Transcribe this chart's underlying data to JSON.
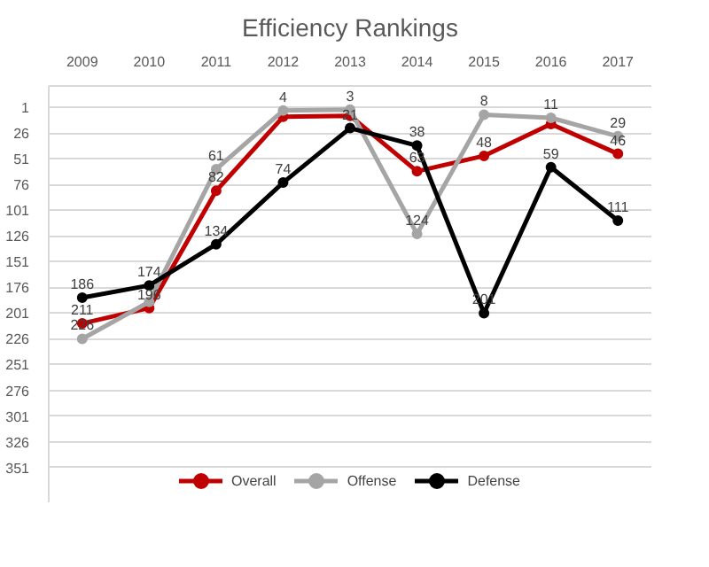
{
  "chart_data": {
    "type": "line",
    "title": "Efficiency Rankings",
    "categories": [
      "2009",
      "2010",
      "2011",
      "2012",
      "2013",
      "2014",
      "2015",
      "2016",
      "2017"
    ],
    "series": [
      {
        "name": "Overall",
        "color": "#c00000",
        "values": [
          211,
          196,
          82,
          10,
          9,
          63,
          48,
          17,
          46
        ],
        "value_labels": [
          "211",
          "196",
          "82",
          null,
          null,
          "63",
          "48",
          null,
          "46"
        ]
      },
      {
        "name": "Offense",
        "color": "#a5a5a5",
        "values": [
          226,
          190,
          61,
          4,
          3,
          124,
          8,
          11,
          29
        ],
        "value_labels": [
          "226",
          null,
          "61",
          "4",
          "3",
          "124",
          "8",
          "11",
          "29"
        ]
      },
      {
        "name": "Defense",
        "color": "#000000",
        "values": [
          186,
          174,
          134,
          74,
          21,
          38,
          201,
          59,
          111
        ]
      }
    ],
    "ylim": [
      385,
      -20
    ],
    "yticks": [
      1,
      26,
      51,
      76,
      101,
      126,
      151,
      176,
      201,
      226,
      251,
      276,
      301,
      326,
      351
    ],
    "grid": "y",
    "legend": "bottom",
    "marker": "circle",
    "line_style": "solid",
    "data_labels": true
  }
}
